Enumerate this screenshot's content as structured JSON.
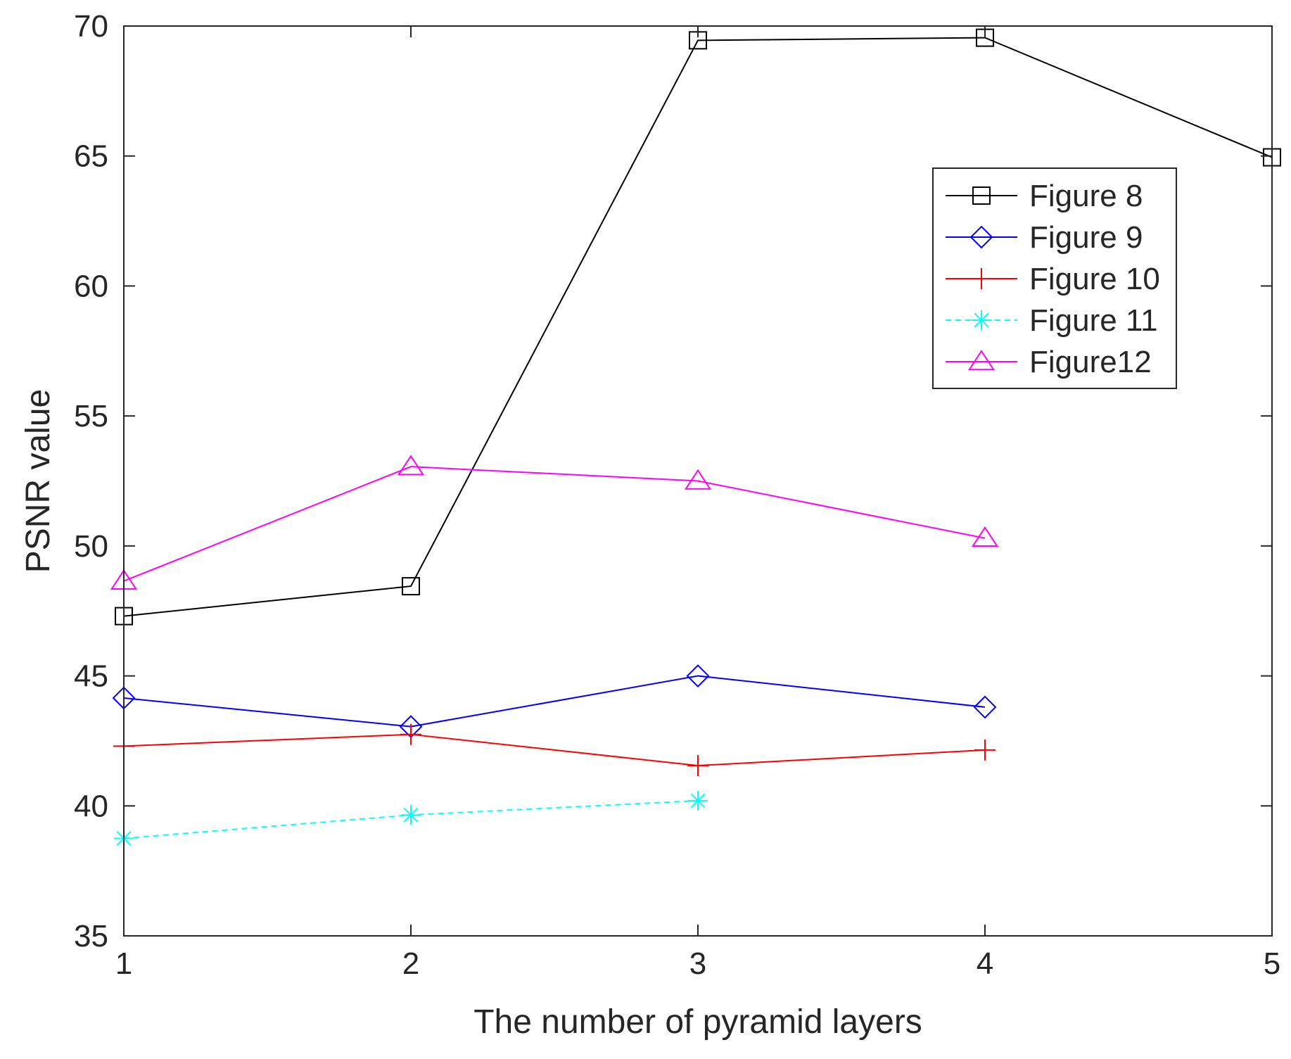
{
  "chart_data": {
    "type": "line",
    "title": "",
    "xlabel": "The number of pyramid layers",
    "ylabel": "PSNR value",
    "xlim": [
      1,
      5
    ],
    "ylim": [
      35,
      70
    ],
    "xticks": [
      1,
      2,
      3,
      4,
      5
    ],
    "yticks": [
      35,
      40,
      45,
      50,
      55,
      60,
      65,
      70
    ],
    "grid": false,
    "box": true,
    "legend_position": "upper-right",
    "series": [
      {
        "name": "Figure 8",
        "x": [
          1,
          2,
          3,
          4,
          5
        ],
        "values": [
          47.3,
          48.45,
          69.45,
          69.55,
          64.95
        ],
        "color": "#000000",
        "marker": "square",
        "dash": "solid"
      },
      {
        "name": "Figure 9",
        "x": [
          1,
          2,
          3,
          4
        ],
        "values": [
          44.15,
          43.05,
          45.0,
          43.8
        ],
        "color": "#0000ff",
        "marker": "diamond",
        "dash": "solid"
      },
      {
        "name": "Figure 10",
        "x": [
          1,
          2,
          3,
          4
        ],
        "values": [
          42.3,
          42.75,
          41.55,
          42.15
        ],
        "color": "#ff0000",
        "marker": "plus",
        "dash": "solid"
      },
      {
        "name": "Figure 11",
        "x": [
          1,
          2,
          3
        ],
        "values": [
          38.75,
          39.65,
          40.2
        ],
        "color": "#00ffff",
        "marker": "asterisk",
        "dash": "dashed"
      },
      {
        "name": "Figure12",
        "x": [
          1,
          2,
          3,
          4
        ],
        "values": [
          48.65,
          53.05,
          52.5,
          50.3
        ],
        "color": "#ff00ff",
        "marker": "triangle",
        "dash": "solid"
      }
    ]
  }
}
